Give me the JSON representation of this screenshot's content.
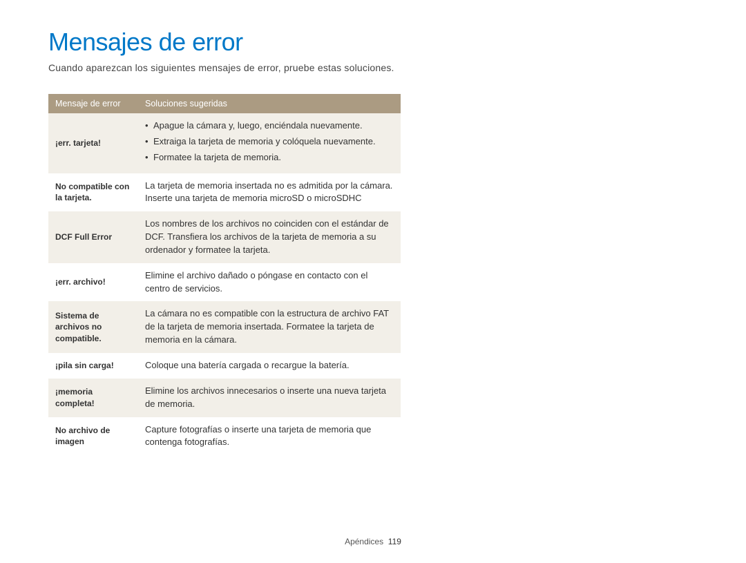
{
  "title": {
    "text": "Mensajes de error",
    "color": "#0078c8"
  },
  "subtitle": "Cuando aparezcan los siguientes mensajes de error, pruebe estas soluciones.",
  "table": {
    "header": {
      "col1": "Mensaje de error",
      "col2": "Soluciones sugeridas",
      "bg_color": "#ab9b82",
      "text_color": "#ffffff"
    },
    "row_colors": {
      "odd": "#f2efe8",
      "even": "#ffffff"
    },
    "rows": [
      {
        "label": "¡err. tarjeta!",
        "solutions": [
          "Apague la cámara y, luego, enciéndala nuevamente.",
          "Extraiga la tarjeta de memoria y colóquela nuevamente.",
          "Formatee la tarjeta de memoria."
        ]
      },
      {
        "label": "No compatible con la tarjeta.",
        "solution": "La tarjeta de memoria insertada no es admitida por la cámara. Inserte una tarjeta de memoria microSD o microSDHC"
      },
      {
        "label": "DCF Full Error",
        "solution": "Los nombres de los archivos no coinciden con el estándar de DCF. Transfiera los archivos de la tarjeta de memoria a su ordenador y formatee la tarjeta."
      },
      {
        "label": "¡err. archivo!",
        "solution": "Elimine el archivo dañado o póngase en contacto con el centro de servicios."
      },
      {
        "label": "Sistema de archivos no compatible.",
        "solution": "La cámara no es compatible con la estructura de archivo FAT de la tarjeta de memoria insertada. Formatee la tarjeta de memoria en la cámara."
      },
      {
        "label": "¡pila sin carga!",
        "solution": "Coloque una batería cargada o recargue la batería."
      },
      {
        "label": "¡memoria completa!",
        "solution": "Elimine los archivos innecesarios o inserte una nueva tarjeta de memoria."
      },
      {
        "label": "No archivo de imagen",
        "solution": "Capture fotografías o inserte una tarjeta de memoria que contenga fotografías."
      }
    ]
  },
  "footer": {
    "section": "Apéndices",
    "page": "119"
  }
}
